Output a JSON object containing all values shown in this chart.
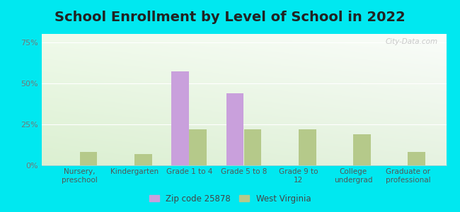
{
  "title": "School Enrollment by Level of School in 2022",
  "categories": [
    "Nursery,\npreschool",
    "Kindergarten",
    "Grade 1 to 4",
    "Grade 5 to 8",
    "Grade 9 to\n12",
    "College\nundergrad",
    "Graduate or\nprofessional"
  ],
  "zip_values": [
    0,
    0,
    57,
    44,
    0,
    0,
    0
  ],
  "wv_values": [
    8,
    7,
    22,
    22,
    22,
    19,
    8
  ],
  "zip_color": "#c9a0dc",
  "wv_color": "#b5c98a",
  "ylim": [
    0,
    80
  ],
  "yticks": [
    0,
    25,
    50,
    75
  ],
  "ytick_labels": [
    "0%",
    "25%",
    "50%",
    "75%"
  ],
  "background_color": "#00e8f0",
  "title_fontsize": 14,
  "axis_label_fontsize": 7.5,
  "tick_fontsize": 8,
  "legend_label_zip": "Zip code 25878",
  "legend_label_wv": "West Virginia",
  "watermark": "City-Data.com",
  "bar_width": 0.32,
  "grad_top": "#f8fdf8",
  "grad_bottom": "#d8eed8",
  "grad_left": "#e8f8f0",
  "grad_right": "#f8fcff"
}
